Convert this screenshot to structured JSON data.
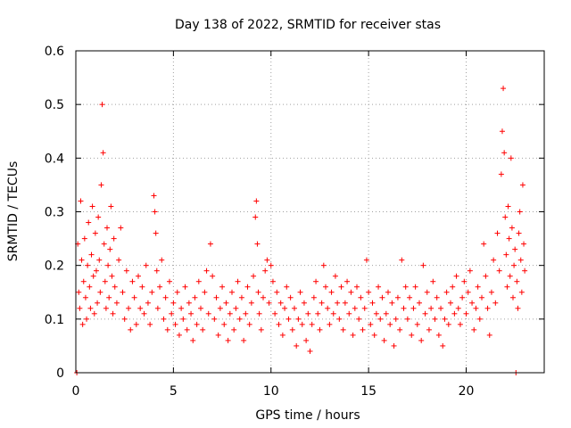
{
  "chart_data": {
    "type": "scatter",
    "title": "Day 138 of 2022, SRMTID for receiver stas",
    "xlabel": "GPS time / hours",
    "ylabel": "SRMTID / TECUs",
    "xlim": [
      0,
      24
    ],
    "ylim": [
      0,
      0.6
    ],
    "xticks": [
      0,
      5,
      10,
      15,
      20
    ],
    "xtick_labels": [
      "0",
      "5",
      "10",
      "15",
      "20"
    ],
    "yticks": [
      0,
      0.1,
      0.2,
      0.3,
      0.4,
      0.5,
      0.6
    ],
    "ytick_labels": [
      "0",
      "0.1",
      "0.2",
      "0.3",
      "0.4",
      "0.5",
      "0.6"
    ],
    "grid": true,
    "marker": "+",
    "color": "#ff0000",
    "series": [
      {
        "name": "stas",
        "points": [
          [
            0.05,
            0.0
          ],
          [
            0.1,
            0.24
          ],
          [
            0.15,
            0.15
          ],
          [
            0.2,
            0.12
          ],
          [
            0.25,
            0.32
          ],
          [
            0.3,
            0.21
          ],
          [
            0.35,
            0.09
          ],
          [
            0.4,
            0.17
          ],
          [
            0.45,
            0.25
          ],
          [
            0.5,
            0.14
          ],
          [
            0.55,
            0.1
          ],
          [
            0.6,
            0.2
          ],
          [
            0.65,
            0.28
          ],
          [
            0.7,
            0.16
          ],
          [
            0.75,
            0.12
          ],
          [
            0.8,
            0.22
          ],
          [
            0.85,
            0.31
          ],
          [
            0.9,
            0.18
          ],
          [
            0.95,
            0.11
          ],
          [
            1.0,
            0.26
          ],
          [
            1.05,
            0.19
          ],
          [
            1.1,
            0.13
          ],
          [
            1.15,
            0.29
          ],
          [
            1.2,
            0.21
          ],
          [
            1.25,
            0.15
          ],
          [
            1.3,
            0.35
          ],
          [
            1.35,
            0.5
          ],
          [
            1.4,
            0.41
          ],
          [
            1.45,
            0.24
          ],
          [
            1.5,
            0.17
          ],
          [
            1.55,
            0.12
          ],
          [
            1.6,
            0.27
          ],
          [
            1.65,
            0.2
          ],
          [
            1.7,
            0.14
          ],
          [
            1.75,
            0.23
          ],
          [
            1.8,
            0.31
          ],
          [
            1.85,
            0.18
          ],
          [
            1.9,
            0.11
          ],
          [
            1.95,
            0.25
          ],
          [
            2.0,
            0.16
          ],
          [
            2.1,
            0.13
          ],
          [
            2.2,
            0.21
          ],
          [
            2.3,
            0.27
          ],
          [
            2.4,
            0.15
          ],
          [
            2.5,
            0.1
          ],
          [
            2.6,
            0.19
          ],
          [
            2.7,
            0.12
          ],
          [
            2.8,
            0.08
          ],
          [
            2.9,
            0.17
          ],
          [
            3.0,
            0.14
          ],
          [
            3.1,
            0.09
          ],
          [
            3.2,
            0.18
          ],
          [
            3.3,
            0.12
          ],
          [
            3.4,
            0.16
          ],
          [
            3.5,
            0.11
          ],
          [
            3.6,
            0.2
          ],
          [
            3.7,
            0.13
          ],
          [
            3.8,
            0.09
          ],
          [
            3.9,
            0.15
          ],
          [
            4.0,
            0.33
          ],
          [
            4.05,
            0.3
          ],
          [
            4.1,
            0.26
          ],
          [
            4.15,
            0.19
          ],
          [
            4.2,
            0.12
          ],
          [
            4.3,
            0.16
          ],
          [
            4.4,
            0.21
          ],
          [
            4.5,
            0.1
          ],
          [
            4.6,
            0.14
          ],
          [
            4.7,
            0.08
          ],
          [
            4.8,
            0.17
          ],
          [
            4.9,
            0.11
          ],
          [
            5.0,
            0.13
          ],
          [
            5.1,
            0.09
          ],
          [
            5.2,
            0.15
          ],
          [
            5.3,
            0.07
          ],
          [
            5.4,
            0.12
          ],
          [
            5.5,
            0.1
          ],
          [
            5.6,
            0.16
          ],
          [
            5.7,
            0.08
          ],
          [
            5.8,
            0.13
          ],
          [
            5.9,
            0.11
          ],
          [
            6.0,
            0.06
          ],
          [
            6.1,
            0.14
          ],
          [
            6.2,
            0.09
          ],
          [
            6.3,
            0.17
          ],
          [
            6.4,
            0.12
          ],
          [
            6.5,
            0.08
          ],
          [
            6.6,
            0.15
          ],
          [
            6.7,
            0.19
          ],
          [
            6.8,
            0.11
          ],
          [
            6.9,
            0.24
          ],
          [
            7.0,
            0.18
          ],
          [
            7.1,
            0.1
          ],
          [
            7.2,
            0.14
          ],
          [
            7.3,
            0.07
          ],
          [
            7.4,
            0.12
          ],
          [
            7.5,
            0.16
          ],
          [
            7.6,
            0.09
          ],
          [
            7.7,
            0.13
          ],
          [
            7.8,
            0.06
          ],
          [
            7.9,
            0.11
          ],
          [
            8.0,
            0.15
          ],
          [
            8.1,
            0.08
          ],
          [
            8.2,
            0.12
          ],
          [
            8.3,
            0.17
          ],
          [
            8.4,
            0.1
          ],
          [
            8.5,
            0.14
          ],
          [
            8.6,
            0.06
          ],
          [
            8.7,
            0.11
          ],
          [
            8.8,
            0.16
          ],
          [
            8.9,
            0.09
          ],
          [
            9.0,
            0.13
          ],
          [
            9.1,
            0.18
          ],
          [
            9.2,
            0.29
          ],
          [
            9.25,
            0.32
          ],
          [
            9.3,
            0.24
          ],
          [
            9.35,
            0.15
          ],
          [
            9.4,
            0.11
          ],
          [
            9.5,
            0.08
          ],
          [
            9.6,
            0.14
          ],
          [
            9.7,
            0.19
          ],
          [
            9.8,
            0.21
          ],
          [
            9.9,
            0.13
          ],
          [
            10.0,
            0.2
          ],
          [
            10.1,
            0.17
          ],
          [
            10.2,
            0.11
          ],
          [
            10.3,
            0.15
          ],
          [
            10.4,
            0.09
          ],
          [
            10.5,
            0.13
          ],
          [
            10.6,
            0.07
          ],
          [
            10.7,
            0.12
          ],
          [
            10.8,
            0.16
          ],
          [
            10.9,
            0.1
          ],
          [
            11.0,
            0.14
          ],
          [
            11.1,
            0.08
          ],
          [
            11.2,
            0.12
          ],
          [
            11.3,
            0.05
          ],
          [
            11.4,
            0.1
          ],
          [
            11.5,
            0.15
          ],
          [
            11.6,
            0.09
          ],
          [
            11.7,
            0.13
          ],
          [
            11.8,
            0.06
          ],
          [
            11.9,
            0.11
          ],
          [
            12.0,
            0.04
          ],
          [
            12.1,
            0.09
          ],
          [
            12.2,
            0.14
          ],
          [
            12.3,
            0.17
          ],
          [
            12.4,
            0.11
          ],
          [
            12.5,
            0.08
          ],
          [
            12.6,
            0.13
          ],
          [
            12.7,
            0.2
          ],
          [
            12.8,
            0.16
          ],
          [
            12.9,
            0.12
          ],
          [
            13.0,
            0.09
          ],
          [
            13.1,
            0.15
          ],
          [
            13.2,
            0.11
          ],
          [
            13.3,
            0.18
          ],
          [
            13.4,
            0.13
          ],
          [
            13.5,
            0.1
          ],
          [
            13.6,
            0.16
          ],
          [
            13.7,
            0.08
          ],
          [
            13.8,
            0.13
          ],
          [
            13.9,
            0.17
          ],
          [
            14.0,
            0.11
          ],
          [
            14.1,
            0.15
          ],
          [
            14.2,
            0.07
          ],
          [
            14.3,
            0.12
          ],
          [
            14.4,
            0.16
          ],
          [
            14.5,
            0.1
          ],
          [
            14.6,
            0.14
          ],
          [
            14.7,
            0.08
          ],
          [
            14.8,
            0.12
          ],
          [
            14.9,
            0.21
          ],
          [
            15.0,
            0.15
          ],
          [
            15.1,
            0.09
          ],
          [
            15.2,
            0.13
          ],
          [
            15.3,
            0.07
          ],
          [
            15.4,
            0.11
          ],
          [
            15.5,
            0.16
          ],
          [
            15.6,
            0.1
          ],
          [
            15.7,
            0.14
          ],
          [
            15.8,
            0.06
          ],
          [
            15.9,
            0.11
          ],
          [
            16.0,
            0.15
          ],
          [
            16.1,
            0.09
          ],
          [
            16.2,
            0.13
          ],
          [
            16.3,
            0.05
          ],
          [
            16.4,
            0.1
          ],
          [
            16.5,
            0.14
          ],
          [
            16.6,
            0.08
          ],
          [
            16.7,
            0.21
          ],
          [
            16.8,
            0.12
          ],
          [
            16.9,
            0.16
          ],
          [
            17.0,
            0.1
          ],
          [
            17.1,
            0.14
          ],
          [
            17.2,
            0.07
          ],
          [
            17.3,
            0.12
          ],
          [
            17.4,
            0.16
          ],
          [
            17.5,
            0.09
          ],
          [
            17.6,
            0.13
          ],
          [
            17.7,
            0.06
          ],
          [
            17.8,
            0.2
          ],
          [
            17.9,
            0.11
          ],
          [
            18.0,
            0.15
          ],
          [
            18.1,
            0.08
          ],
          [
            18.2,
            0.12
          ],
          [
            18.3,
            0.17
          ],
          [
            18.4,
            0.1
          ],
          [
            18.5,
            0.14
          ],
          [
            18.6,
            0.07
          ],
          [
            18.7,
            0.12
          ],
          [
            18.8,
            0.05
          ],
          [
            18.9,
            0.1
          ],
          [
            19.0,
            0.15
          ],
          [
            19.1,
            0.09
          ],
          [
            19.2,
            0.13
          ],
          [
            19.3,
            0.16
          ],
          [
            19.4,
            0.11
          ],
          [
            19.5,
            0.18
          ],
          [
            19.6,
            0.12
          ],
          [
            19.7,
            0.09
          ],
          [
            19.8,
            0.14
          ],
          [
            19.9,
            0.17
          ],
          [
            20.0,
            0.11
          ],
          [
            20.1,
            0.15
          ],
          [
            20.2,
            0.19
          ],
          [
            20.3,
            0.13
          ],
          [
            20.4,
            0.08
          ],
          [
            20.5,
            0.12
          ],
          [
            20.6,
            0.16
          ],
          [
            20.7,
            0.1
          ],
          [
            20.8,
            0.14
          ],
          [
            20.9,
            0.24
          ],
          [
            21.0,
            0.18
          ],
          [
            21.1,
            0.12
          ],
          [
            21.2,
            0.07
          ],
          [
            21.3,
            0.15
          ],
          [
            21.4,
            0.21
          ],
          [
            21.5,
            0.13
          ],
          [
            21.6,
            0.26
          ],
          [
            21.7,
            0.19
          ],
          [
            21.8,
            0.37
          ],
          [
            21.85,
            0.45
          ],
          [
            21.9,
            0.53
          ],
          [
            21.95,
            0.41
          ],
          [
            22.0,
            0.29
          ],
          [
            22.05,
            0.22
          ],
          [
            22.1,
            0.16
          ],
          [
            22.15,
            0.31
          ],
          [
            22.2,
            0.25
          ],
          [
            22.25,
            0.18
          ],
          [
            22.3,
            0.4
          ],
          [
            22.35,
            0.27
          ],
          [
            22.4,
            0.14
          ],
          [
            22.45,
            0.2
          ],
          [
            22.5,
            0.23
          ],
          [
            22.55,
            0.0
          ],
          [
            22.6,
            0.17
          ],
          [
            22.65,
            0.12
          ],
          [
            22.7,
            0.26
          ],
          [
            22.75,
            0.3
          ],
          [
            22.8,
            0.21
          ],
          [
            22.85,
            0.15
          ],
          [
            22.9,
            0.35
          ],
          [
            22.95,
            0.24
          ],
          [
            23.0,
            0.19
          ]
        ]
      }
    ]
  }
}
